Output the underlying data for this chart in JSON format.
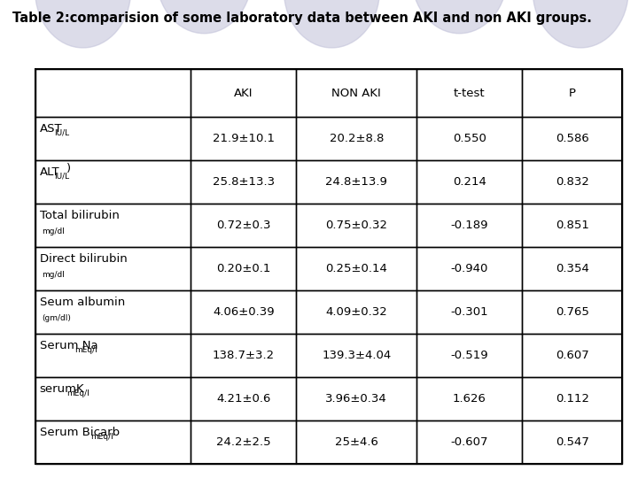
{
  "title": "Table 2:comparision of some laboratory data between AKI and non AKI groups.",
  "columns": [
    "AKI",
    "NON AKI",
    "t-test",
    "P"
  ],
  "rows": [
    {
      "label_main": "AST",
      "label_sub": "IU/L",
      "label_super": "",
      "inline_sub": true,
      "aki": "21.9±10.1",
      "non_aki": "20.2±8.8",
      "t_test": "0.550",
      "p": "0.586"
    },
    {
      "label_main": "ALT",
      "label_sub": "IU/L",
      "label_super": ")",
      "inline_sub": true,
      "aki": "25.8±13.3",
      "non_aki": "24.8±13.9",
      "t_test": "0.214",
      "p": "0.832"
    },
    {
      "label_main": "Total bilirubin",
      "label_sub": "mg/dl",
      "label_super": "",
      "inline_sub": false,
      "aki": "0.72±0.3",
      "non_aki": "0.75±0.32",
      "t_test": "-0.189",
      "p": "0.851"
    },
    {
      "label_main": "Direct bilirubin",
      "label_sub": "mg/dl",
      "label_super": "",
      "inline_sub": false,
      "aki": "0.20±0.1",
      "non_aki": "0.25±0.14",
      "t_test": "-0.940",
      "p": "0.354"
    },
    {
      "label_main": "Seum albumin",
      "label_sub": "(gm/dl)",
      "label_super": "",
      "inline_sub": false,
      "aki": "4.06±0.39",
      "non_aki": "4.09±0.32",
      "t_test": "-0.301",
      "p": "0.765"
    },
    {
      "label_main": "Serum Na",
      "label_sub": "mEq/l",
      "label_super": "",
      "inline_sub": true,
      "aki": "138.7±3.2",
      "non_aki": "139.3±4.04",
      "t_test": "-0.519",
      "p": "0.607"
    },
    {
      "label_main": "serumK",
      "label_sub": "mEq/l",
      "label_super": "",
      "inline_sub": true,
      "aki": "4.21±0.6",
      "non_aki": "3.96±0.34",
      "t_test": "1.626",
      "p": "0.112"
    },
    {
      "label_main": "Serum Bicarb",
      "label_sub": "mEq/l",
      "label_super": "",
      "inline_sub": true,
      "aki": "24.2±2.5",
      "non_aki": "25±4.6",
      "t_test": "-0.607",
      "p": "0.547"
    }
  ],
  "bg_color": "#ffffff",
  "title_fontsize": 10.5,
  "cell_fontsize": 9.5,
  "header_fontsize": 9.5,
  "label_fontsize": 9.5,
  "label_sub_fontsize": 6.5,
  "circle_color": "#c0c0d8",
  "table_border_color": "#000000"
}
